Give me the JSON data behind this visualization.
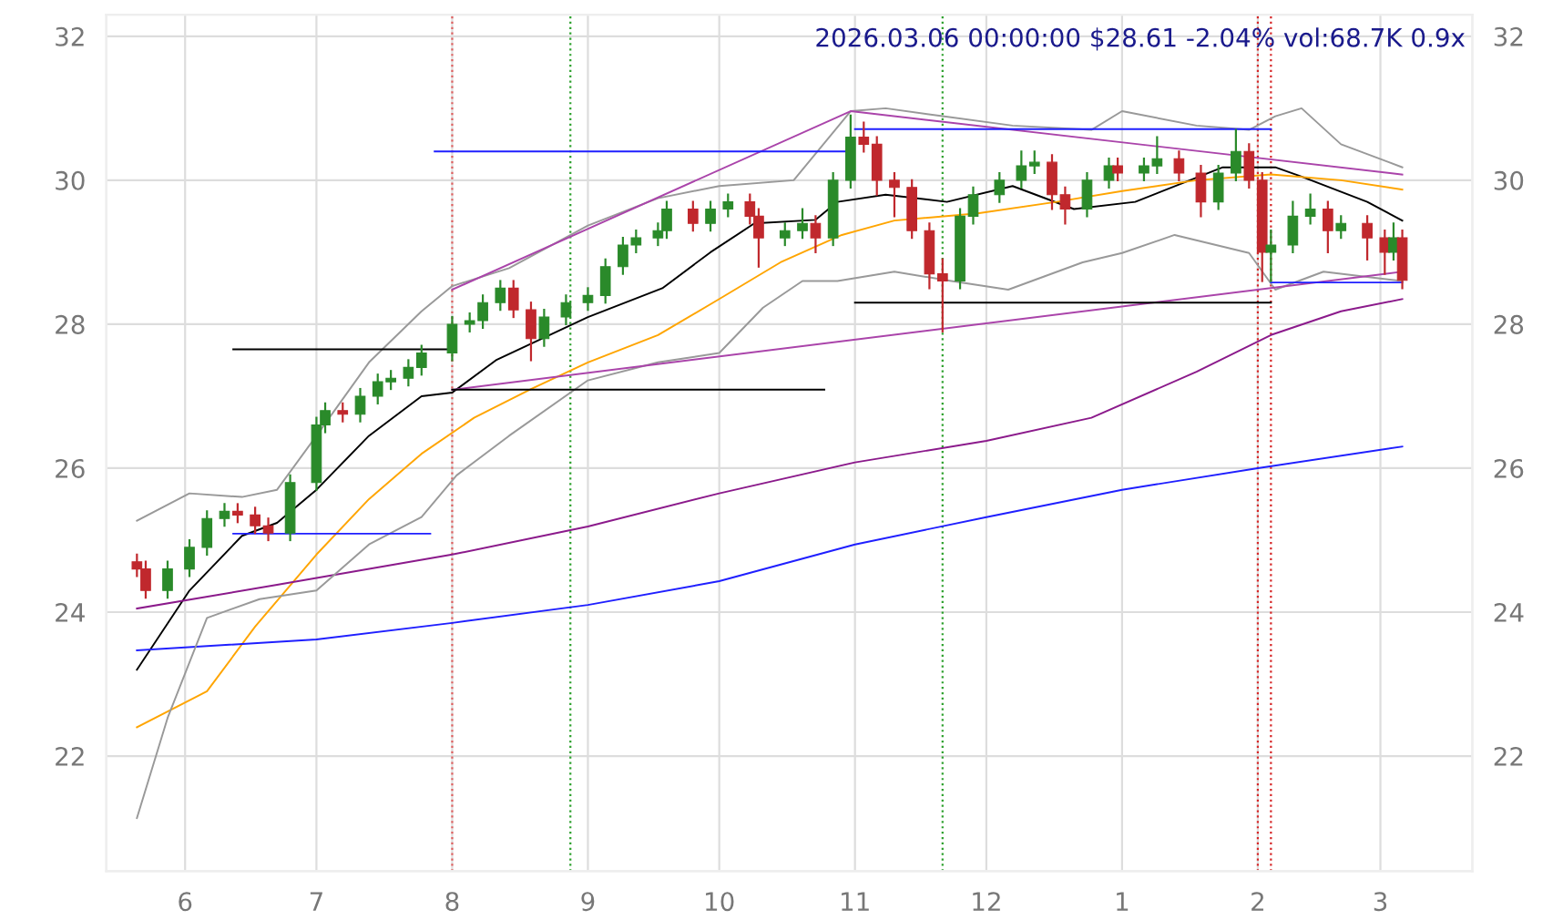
{
  "chart_data": {
    "type": "candlestick",
    "title": "2026.03.06 00:00:00 $28.61 -2.04% vol:68.7K 0.9x",
    "x": [
      "2025-05-21",
      "2025-05-23",
      "2025-05-28",
      "2025-06-02",
      "2025-06-06",
      "2025-06-10",
      "2025-06-13",
      "2025-06-17",
      "2025-06-20",
      "2025-06-25",
      "2025-07-01",
      "2025-07-03",
      "2025-07-07",
      "2025-07-11",
      "2025-07-15",
      "2025-07-18",
      "2025-07-22",
      "2025-07-25",
      "2025-08-01",
      "2025-08-05",
      "2025-08-08",
      "2025-08-12",
      "2025-08-15",
      "2025-08-19",
      "2025-08-22",
      "2025-08-27",
      "2025-09-01",
      "2025-09-05",
      "2025-09-09",
      "2025-09-12",
      "2025-09-17",
      "2025-09-19",
      "2025-09-25",
      "2025-09-29",
      "2025-10-03",
      "2025-10-08",
      "2025-10-10",
      "2025-10-16",
      "2025-10-20",
      "2025-10-23",
      "2025-10-27",
      "2025-10-31",
      "2025-11-03",
      "2025-11-06",
      "2025-11-10",
      "2025-11-14",
      "2025-11-18",
      "2025-11-21",
      "2025-11-25",
      "2025-11-28",
      "2025-12-04",
      "2025-12-09",
      "2025-12-12",
      "2025-12-16",
      "2025-12-19",
      "2025-12-24",
      "2025-12-29",
      "2025-12-31",
      "2026-01-06",
      "2026-01-09",
      "2026-01-14",
      "2026-01-19",
      "2026-01-23",
      "2026-01-27",
      "2026-01-30",
      "2026-02-02",
      "2026-02-04",
      "2026-02-09",
      "2026-02-13",
      "2026-02-17",
      "2026-02-20",
      "2026-02-26",
      "2026-03-02",
      "2026-03-04",
      "2026-03-06"
    ],
    "ohlc": [
      [
        24.7,
        24.8,
        24.5,
        24.6
      ],
      [
        24.6,
        24.7,
        24.2,
        24.3
      ],
      [
        24.3,
        24.7,
        24.2,
        24.6
      ],
      [
        24.6,
        25.0,
        24.5,
        24.9
      ],
      [
        24.9,
        25.4,
        24.8,
        25.3
      ],
      [
        25.3,
        25.5,
        25.2,
        25.4
      ],
      [
        25.4,
        25.5,
        25.25,
        25.35
      ],
      [
        25.35,
        25.45,
        25.1,
        25.2
      ],
      [
        25.2,
        25.3,
        25.0,
        25.1
      ],
      [
        25.1,
        25.9,
        25.0,
        25.8
      ],
      [
        25.8,
        26.7,
        25.7,
        26.6
      ],
      [
        26.6,
        26.9,
        26.5,
        26.8
      ],
      [
        26.8,
        26.9,
        26.65,
        26.75
      ],
      [
        26.75,
        27.1,
        26.65,
        27.0
      ],
      [
        27.0,
        27.3,
        26.9,
        27.2
      ],
      [
        27.2,
        27.35,
        27.1,
        27.25
      ],
      [
        27.25,
        27.5,
        27.15,
        27.4
      ],
      [
        27.4,
        27.7,
        27.3,
        27.6
      ],
      [
        27.6,
        28.1,
        27.5,
        28.0
      ],
      [
        28.0,
        28.15,
        27.9,
        28.05
      ],
      [
        28.05,
        28.4,
        27.95,
        28.3
      ],
      [
        28.3,
        28.6,
        28.2,
        28.5
      ],
      [
        28.5,
        28.6,
        28.1,
        28.2
      ],
      [
        28.2,
        28.3,
        27.5,
        27.8
      ],
      [
        27.8,
        28.2,
        27.7,
        28.1
      ],
      [
        28.1,
        28.4,
        28.0,
        28.3
      ],
      [
        28.3,
        28.5,
        28.2,
        28.4
      ],
      [
        28.4,
        28.9,
        28.3,
        28.8
      ],
      [
        28.8,
        29.2,
        28.7,
        29.1
      ],
      [
        29.1,
        29.3,
        29.0,
        29.2
      ],
      [
        29.2,
        29.4,
        29.1,
        29.3
      ],
      [
        29.3,
        29.7,
        29.2,
        29.6
      ],
      [
        29.6,
        29.7,
        29.3,
        29.4
      ],
      [
        29.4,
        29.7,
        29.3,
        29.6
      ],
      [
        29.6,
        29.8,
        29.5,
        29.7
      ],
      [
        29.7,
        29.8,
        29.4,
        29.5
      ],
      [
        29.5,
        29.6,
        28.8,
        29.2
      ],
      [
        29.2,
        29.4,
        29.1,
        29.3
      ],
      [
        29.3,
        29.6,
        29.2,
        29.4
      ],
      [
        29.4,
        29.5,
        29.0,
        29.2
      ],
      [
        29.2,
        30.1,
        29.1,
        30.0
      ],
      [
        30.0,
        30.9,
        29.9,
        30.6
      ],
      [
        30.6,
        30.8,
        30.4,
        30.5
      ],
      [
        30.5,
        30.6,
        29.8,
        30.0
      ],
      [
        30.0,
        30.1,
        29.5,
        29.9
      ],
      [
        29.9,
        30.0,
        29.2,
        29.3
      ],
      [
        29.3,
        29.4,
        28.5,
        28.7
      ],
      [
        28.7,
        28.9,
        27.9,
        28.6
      ],
      [
        28.6,
        29.6,
        28.5,
        29.5
      ],
      [
        29.5,
        29.9,
        29.4,
        29.8
      ],
      [
        29.8,
        30.1,
        29.7,
        30.0
      ],
      [
        30.0,
        30.4,
        29.9,
        30.2
      ],
      [
        30.2,
        30.4,
        30.1,
        30.25
      ],
      [
        30.25,
        30.35,
        29.6,
        29.8
      ],
      [
        29.8,
        29.9,
        29.4,
        29.6
      ],
      [
        29.6,
        30.1,
        29.5,
        30.0
      ],
      [
        30.0,
        30.3,
        29.9,
        30.2
      ],
      [
        30.2,
        30.3,
        30.0,
        30.1
      ],
      [
        30.1,
        30.3,
        30.0,
        30.2
      ],
      [
        30.2,
        30.6,
        30.1,
        30.3
      ],
      [
        30.3,
        30.4,
        30.0,
        30.1
      ],
      [
        30.1,
        30.2,
        29.5,
        29.7
      ],
      [
        29.7,
        30.2,
        29.6,
        30.1
      ],
      [
        30.1,
        30.7,
        30.0,
        30.4
      ],
      [
        30.4,
        30.5,
        29.9,
        30.0
      ],
      [
        30.0,
        30.1,
        28.6,
        29.0
      ],
      [
        29.0,
        29.3,
        28.6,
        29.1
      ],
      [
        29.1,
        29.7,
        29.0,
        29.5
      ],
      [
        29.5,
        29.8,
        29.4,
        29.6
      ],
      [
        29.6,
        29.7,
        29.0,
        29.3
      ],
      [
        29.3,
        29.5,
        29.2,
        29.4
      ],
      [
        29.4,
        29.5,
        28.9,
        29.2
      ],
      [
        29.2,
        29.3,
        28.7,
        29.0
      ],
      [
        29.0,
        29.4,
        28.9,
        29.2
      ],
      [
        29.2,
        29.3,
        28.5,
        28.61
      ]
    ],
    "series": [
      {
        "type": "line",
        "color": "#000000",
        "x": [
          "2025-05-21",
          "2025-06-02",
          "2025-06-14",
          "2025-06-22",
          "2025-07-01",
          "2025-07-13",
          "2025-07-25",
          "2025-08-01",
          "2025-08-11",
          "2025-09-01",
          "2025-09-18",
          "2025-09-29",
          "2025-10-09",
          "2025-10-23",
          "2025-10-28",
          "2025-11-08",
          "2025-11-22",
          "2025-12-07",
          "2025-12-21",
          "2026-01-04",
          "2026-01-24",
          "2026-02-05",
          "2026-02-11",
          "2026-02-26",
          "2026-03-06"
        ],
        "values": [
          23.2,
          24.3,
          25.06,
          25.24,
          25.7,
          26.45,
          27.0,
          27.05,
          27.5,
          28.1,
          28.5,
          29.0,
          29.4,
          29.45,
          29.7,
          29.8,
          29.7,
          29.92,
          29.6,
          29.7,
          30.18,
          30.18,
          30.05,
          29.7,
          29.44
        ]
      },
      {
        "type": "line",
        "color": "#ffa500",
        "x": [
          "2025-05-21",
          "2025-06-06",
          "2025-06-17",
          "2025-07-01",
          "2025-07-13",
          "2025-07-25",
          "2025-08-06",
          "2025-08-19",
          "2025-09-01",
          "2025-09-17",
          "2025-10-01",
          "2025-10-15",
          "2025-10-29",
          "2025-11-10",
          "2025-11-29",
          "2025-12-17",
          "2026-01-01",
          "2026-01-18",
          "2026-02-04",
          "2026-02-20",
          "2026-03-06"
        ],
        "values": [
          22.4,
          22.9,
          23.8,
          24.8,
          25.57,
          26.2,
          26.7,
          27.1,
          27.47,
          27.85,
          28.35,
          28.86,
          29.24,
          29.44,
          29.54,
          29.7,
          29.85,
          30.0,
          30.08,
          30.0,
          29.87
        ]
      },
      {
        "type": "line",
        "color": "#8b1a8b",
        "x": [
          "2025-05-21",
          "2025-06-22",
          "2025-08-01",
          "2025-09-01",
          "2025-10-01",
          "2025-11-01",
          "2025-12-01",
          "2025-12-25",
          "2026-01-18",
          "2026-02-04",
          "2026-02-20",
          "2026-03-06"
        ],
        "values": [
          24.05,
          24.38,
          24.8,
          25.19,
          25.65,
          26.08,
          26.38,
          26.7,
          27.34,
          27.85,
          28.18,
          28.35
        ]
      },
      {
        "type": "line",
        "color": "#1f1fff",
        "x": [
          "2025-05-21",
          "2025-07-01",
          "2025-08-01",
          "2025-09-01",
          "2025-10-01",
          "2025-11-01",
          "2025-12-01",
          "2026-01-01",
          "2026-02-01",
          "2026-03-06"
        ],
        "values": [
          23.47,
          23.62,
          23.85,
          24.1,
          24.43,
          24.94,
          25.32,
          25.7,
          26.0,
          26.3
        ]
      },
      {
        "type": "line",
        "color": "#999999",
        "x": [
          "2025-05-21",
          "2025-06-02",
          "2025-06-14",
          "2025-06-22",
          "2025-07-01",
          "2025-07-13",
          "2025-07-25",
          "2025-08-01",
          "2025-08-14",
          "2025-09-01",
          "2025-09-17",
          "2025-10-01",
          "2025-10-18",
          "2025-10-31",
          "2025-11-08",
          "2025-11-21",
          "2025-12-07",
          "2025-12-25",
          "2026-01-01",
          "2026-01-18",
          "2026-01-30",
          "2026-02-05",
          "2026-02-11",
          "2026-02-20",
          "2026-03-06"
        ],
        "values": [
          25.27,
          25.65,
          25.6,
          25.7,
          26.45,
          27.47,
          28.18,
          28.53,
          28.78,
          29.37,
          29.75,
          29.92,
          30.0,
          30.96,
          31.0,
          30.89,
          30.76,
          30.7,
          30.96,
          30.76,
          30.7,
          30.89,
          31.0,
          30.5,
          30.18
        ]
      },
      {
        "type": "line",
        "color": "#999999",
        "x": [
          "2025-05-21",
          "2025-05-28",
          "2025-06-06",
          "2025-06-18",
          "2025-07-01",
          "2025-07-13",
          "2025-07-25",
          "2025-08-02",
          "2025-08-14",
          "2025-09-01",
          "2025-09-17",
          "2025-10-01",
          "2025-10-11",
          "2025-10-20",
          "2025-10-28",
          "2025-11-10",
          "2025-11-23",
          "2025-12-06",
          "2025-12-23",
          "2026-01-01",
          "2026-01-13",
          "2026-01-30",
          "2026-02-05",
          "2026-02-16",
          "2026-03-06"
        ],
        "values": [
          21.14,
          22.53,
          23.92,
          24.18,
          24.3,
          24.94,
          25.32,
          25.9,
          26.45,
          27.22,
          27.47,
          27.6,
          28.23,
          28.6,
          28.6,
          28.73,
          28.6,
          28.48,
          28.86,
          28.99,
          29.24,
          28.99,
          28.48,
          28.73,
          28.6
        ]
      },
      {
        "type": "line",
        "color": "#aa44aa",
        "x": [
          "2025-08-01",
          "2025-10-31",
          "2026-03-06"
        ],
        "values": [
          28.48,
          30.96,
          30.08
        ]
      },
      {
        "type": "line",
        "color": "#aa44aa",
        "x": [
          "2025-08-01",
          "2026-03-06"
        ],
        "values": [
          27.09,
          28.73
        ]
      },
      {
        "type": "line",
        "color": "#1f1fff",
        "x": [
          "2025-07-28",
          "2025-10-31"
        ],
        "values": [
          30.4,
          30.4
        ]
      },
      {
        "type": "line",
        "color": "#1f1fff",
        "x": [
          "2025-06-12",
          "2025-07-27"
        ],
        "values": [
          25.09,
          25.09
        ]
      },
      {
        "type": "line",
        "color": "#000000",
        "x": [
          "2025-06-12",
          "2025-08-01"
        ],
        "values": [
          27.65,
          27.65
        ]
      },
      {
        "type": "line",
        "color": "#000000",
        "x": [
          "2025-08-01",
          "2025-10-25"
        ],
        "values": [
          27.09,
          27.09
        ]
      },
      {
        "type": "line",
        "color": "#000000",
        "x": [
          "2025-11-01",
          "2026-02-04"
        ],
        "values": [
          28.3,
          28.3
        ]
      },
      {
        "type": "line",
        "color": "#1f1fff",
        "x": [
          "2025-11-01",
          "2026-02-04"
        ],
        "values": [
          30.71,
          30.71
        ]
      },
      {
        "type": "line",
        "color": "#1f1fff",
        "x": [
          "2026-02-04",
          "2026-03-06"
        ],
        "values": [
          28.58,
          28.58
        ]
      }
    ],
    "ref_lines": [
      {
        "axis": "x",
        "value": "2025-08-01",
        "color": "#e06060",
        "line_style": "dotted"
      },
      {
        "axis": "x",
        "value": "2025-08-28",
        "color": "#2ca02c",
        "line_style": "dotted"
      },
      {
        "axis": "x",
        "value": "2025-11-21",
        "color": "#2ca02c",
        "line_style": "dotted"
      },
      {
        "axis": "x",
        "value": "2026-02-01",
        "color": "#d62728",
        "line_style": "dotted"
      },
      {
        "axis": "x",
        "value": "2026-02-04",
        "color": "#d62728",
        "line_style": "dotted"
      }
    ],
    "xlim": [
      "2025-05-14",
      "2026-03-22"
    ],
    "xticks": [
      {
        "value": "2025-06-01",
        "label": "6"
      },
      {
        "value": "2025-07-01",
        "label": "7"
      },
      {
        "value": "2025-08-01",
        "label": "8"
      },
      {
        "value": "2025-09-01",
        "label": "9"
      },
      {
        "value": "2025-10-01",
        "label": "10"
      },
      {
        "value": "2025-11-01",
        "label": "11"
      },
      {
        "value": "2025-12-01",
        "label": "12"
      },
      {
        "value": "2026-01-01",
        "label": "1"
      },
      {
        "value": "2026-02-01",
        "label": "2"
      },
      {
        "value": "2026-03-01",
        "label": "3"
      }
    ],
    "ylim": [
      20.4,
      32.3
    ],
    "yticks": [
      22,
      24,
      26,
      28,
      30,
      32
    ],
    "y2lim": [
      20.4,
      32.3
    ],
    "y2ticks": [
      22,
      24,
      26,
      28,
      30,
      32
    ],
    "grid": true
  }
}
